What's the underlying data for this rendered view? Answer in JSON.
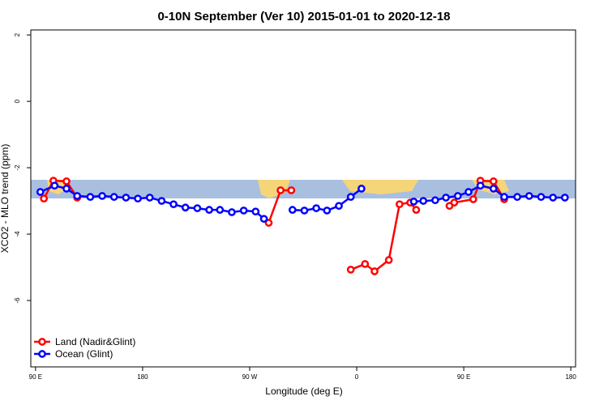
{
  "chart_data": {
    "type": "line",
    "title": "0-10N September (Ver 10)   2015-01-01 to 2020-12-18",
    "x_label": "Longitude (deg E)",
    "y_label": "XCO2 - MLO trend (ppm)",
    "xlim": [
      86,
      544
    ],
    "ylim": [
      -8,
      2.15
    ],
    "xticks": [
      {
        "value": 90,
        "label": "90 E"
      },
      180,
      {
        "value": 270,
        "label": "90 W"
      },
      {
        "value": 360,
        "label": "0"
      },
      {
        "value": 450,
        "label": "90 E"
      },
      {
        "value": 540,
        "label": "180"
      }
    ],
    "yticks": [
      2,
      0,
      -2,
      -4,
      -6
    ],
    "legend": "bottom-left",
    "series": [
      {
        "name": "Land (Nadir&Glint)",
        "color": "#ff0000",
        "x": [
          97,
          105,
          116,
          125,
          null,
          286,
          296,
          305,
          null,
          355,
          367,
          375,
          387,
          396,
          405,
          410,
          null,
          438,
          442,
          458,
          464,
          475,
          484
        ],
        "values": [
          -2.93,
          -2.39,
          -2.41,
          -2.9,
          null,
          -3.66,
          -2.68,
          -2.68,
          null,
          -5.07,
          -4.9,
          -5.12,
          -4.78,
          -3.1,
          -3.05,
          -3.27,
          null,
          -3.15,
          -3.05,
          -2.95,
          -2.39,
          -2.41,
          -2.95
        ]
      },
      {
        "name": "Ocean (Glint)",
        "color": "#0000ff",
        "x": [
          94,
          106,
          116,
          125,
          136,
          146,
          156,
          166,
          176,
          186,
          196,
          206,
          216,
          226,
          236,
          245,
          255,
          265,
          275,
          282,
          null,
          306,
          316,
          326,
          335,
          345,
          355,
          364,
          null,
          408,
          416,
          426,
          435,
          445,
          454,
          464,
          475,
          484,
          495,
          505,
          515,
          525,
          535
        ],
        "values": [
          -2.73,
          -2.54,
          -2.63,
          -2.85,
          -2.88,
          -2.85,
          -2.88,
          -2.9,
          -2.93,
          -2.9,
          -3.0,
          -3.1,
          -3.2,
          -3.22,
          -3.27,
          -3.27,
          -3.34,
          -3.29,
          -3.32,
          -3.54,
          null,
          -3.27,
          -3.29,
          -3.22,
          -3.29,
          -3.15,
          -2.88,
          -2.63,
          null,
          -3.02,
          -3.0,
          -2.98,
          -2.9,
          -2.85,
          -2.73,
          -2.54,
          -2.63,
          -2.88,
          -2.88,
          -2.85,
          -2.88,
          -2.9,
          -2.9
        ]
      }
    ]
  }
}
